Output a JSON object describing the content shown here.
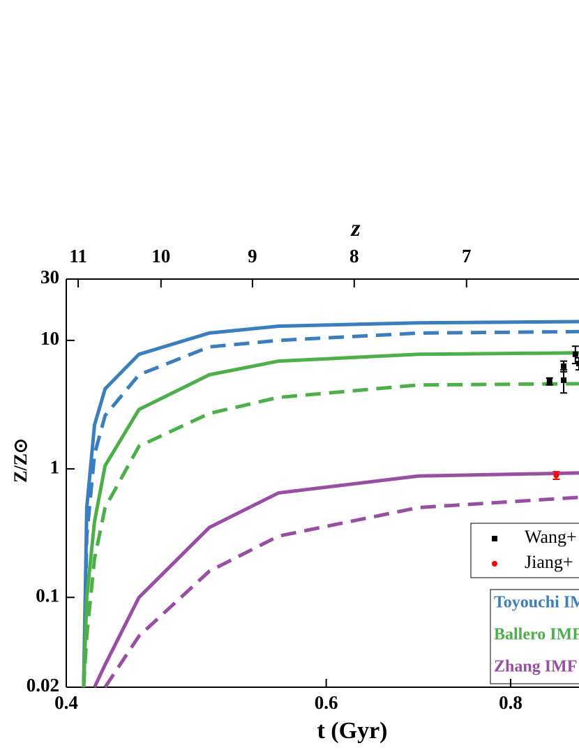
{
  "chart_data": {
    "type": "line",
    "x_label": "t (Gyr)",
    "x2_label": "z",
    "y_label": "Z/Z⊙",
    "x_scale": "log",
    "y_scale": "log",
    "xlim": [
      0.4,
      0.89
    ],
    "xticks": [
      0.4,
      0.6,
      0.8
    ],
    "x2ticks": [
      {
        "value": 0.4075,
        "label": "11"
      },
      {
        "value": 0.4637,
        "label": "10"
      },
      {
        "value": 0.5348,
        "label": "9"
      },
      {
        "value": 0.6268,
        "label": "8"
      },
      {
        "value": 0.7468,
        "label": "7"
      }
    ],
    "ylim": [
      0.02,
      30
    ],
    "yticks": [
      0.02,
      0.1,
      1,
      10,
      30
    ],
    "x": [
      0.411,
      0.413,
      0.418,
      0.425,
      0.448,
      0.5,
      0.557,
      0.693,
      0.89
    ],
    "series": [
      {
        "name": "Toyouchi IMF",
        "color": "#3a7ebf",
        "values": [
          0.02,
          0.5,
          2.2,
          4.2,
          7.8,
          11.4,
          12.9,
          13.7,
          14
        ],
        "dashed_values": [
          0.02,
          0.3,
          1.3,
          2.6,
          5.4,
          8.9,
          10,
          11.4,
          11.7
        ]
      },
      {
        "name": "Ballero IMF",
        "color": "#4daf4a",
        "values": [
          0.02,
          0.1,
          0.39,
          1.06,
          2.9,
          5.4,
          6.9,
          7.8,
          8.0
        ],
        "dashed_values": [
          0.02,
          0.05,
          0.2,
          0.5,
          1.5,
          2.7,
          3.6,
          4.5,
          4.6
        ]
      },
      {
        "name": "Zhang IMF",
        "color": "#984ea3",
        "values": [
          null,
          null,
          0.02,
          0.03,
          0.1,
          0.35,
          0.65,
          0.88,
          0.93
        ],
        "dashed_values": [
          null,
          null,
          null,
          0.02,
          0.05,
          0.16,
          0.3,
          0.5,
          0.6
        ]
      }
    ],
    "points": [
      {
        "name": "Wang+",
        "color": "#000000",
        "marker": "square",
        "x": [
          0.85,
          0.869,
          0.869,
          0.885,
          0.89
        ],
        "values": [
          4.8,
          6.3,
          4.9,
          7.8,
          6.6
        ],
        "errors": [
          0.3,
          0.6,
          1.0,
          1.2,
          0.7
        ]
      },
      {
        "name": "Jiang+",
        "color": "#ff0000",
        "marker": "circle",
        "x": [
          0.859
        ],
        "values": [
          0.89
        ],
        "errors": [
          0.06
        ]
      }
    ]
  }
}
